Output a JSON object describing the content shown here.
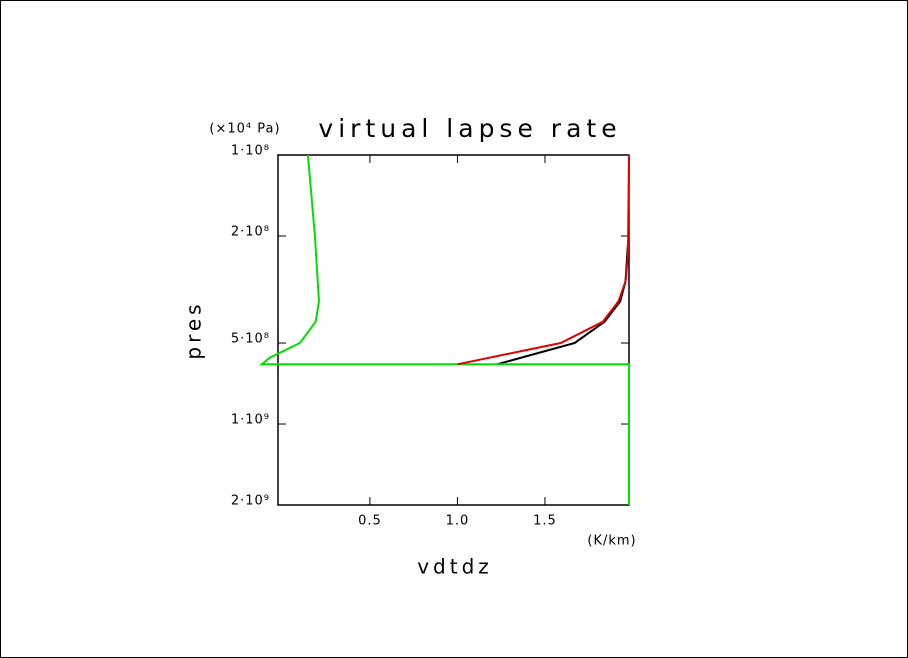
{
  "chart_data": {
    "type": "line",
    "title": "virtual lapse rate",
    "xlabel": "vdtdz",
    "xunit": "(K/km)",
    "ylabel": "pres",
    "yunit": "(×10⁴ Pa)",
    "xlim": [
      -0.025,
      1.98
    ],
    "xticks": [
      0.5,
      {
        "value": 1,
        "label": "1.0"
      },
      1.5
    ],
    "ylim": [
      100000000,
      2000000000
    ],
    "ylog": true,
    "yinvert": true,
    "yticks": [
      {
        "value": 100000000,
        "label": "1·10⁸"
      },
      {
        "value": 200000000,
        "label": "2·10⁸"
      },
      {
        "value": 500000000,
        "label": "5·10⁸"
      },
      {
        "value": 1000000000,
        "label": "1·10⁹"
      },
      {
        "value": 2000000000,
        "label": "2·10⁹"
      }
    ],
    "series": [
      {
        "color": "#000000",
        "pres": [
          600000000,
          500000000,
          417000000,
          350000000,
          295000000,
          210000000
        ],
        "values": [
          1.226,
          1.67,
          1.84,
          1.93,
          1.96,
          1.975
        ]
      },
      {
        "color": "#00e000",
        "pres": [
          100000000,
          200000000,
          350000000,
          417000000,
          500000000,
          566000000,
          600000000,
          600000000,
          2000000000
        ],
        "values": [
          0.146,
          0.186,
          0.209,
          0.19,
          0.1,
          -0.07,
          -0.117,
          1.98,
          1.98
        ]
      },
      {
        "color": "#e00000",
        "pres": [
          600000000,
          500000000,
          417000000,
          350000000,
          295000000,
          240000000,
          100000000
        ],
        "values": [
          1.0,
          1.59,
          1.83,
          1.92,
          1.96,
          1.974,
          1.98
        ]
      }
    ]
  }
}
